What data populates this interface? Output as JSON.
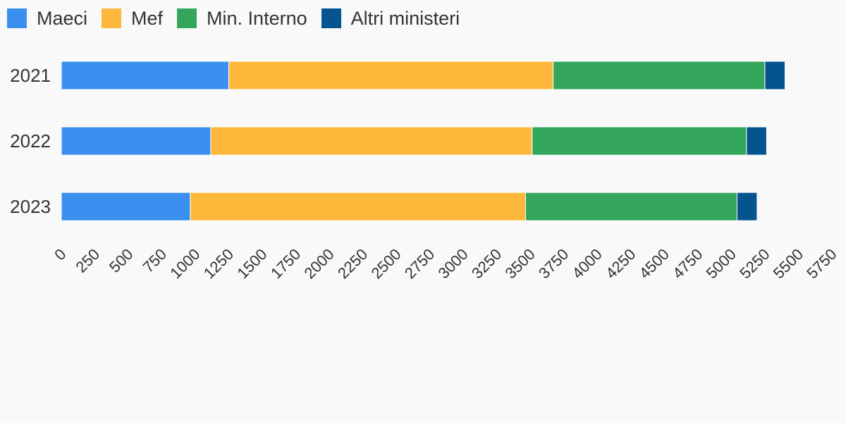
{
  "chart_data": {
    "type": "bar",
    "orientation": "horizontal",
    "stacked": true,
    "title": "",
    "xlabel": "",
    "ylabel": "",
    "categories": [
      "2021",
      "2022",
      "2023"
    ],
    "series": [
      {
        "name": "Maeci",
        "color": "#3a8fef",
        "values": [
          1250,
          1115,
          962
        ]
      },
      {
        "name": "Mef",
        "color": "#fdb83b",
        "values": [
          2420,
          2398,
          2502
        ]
      },
      {
        "name": "Min. Interno",
        "color": "#34a65b",
        "values": [
          1580,
          1600,
          1578
        ]
      },
      {
        "name": "Altri ministeri",
        "color": "#03548f",
        "values": [
          150,
          150,
          150
        ]
      }
    ],
    "xlim": [
      0,
      5750
    ],
    "x_ticks": [
      "0",
      "250",
      "500",
      "750",
      "1000",
      "1250",
      "1500",
      "1750",
      "2000",
      "2250",
      "2500",
      "2750",
      "3000",
      "3250",
      "3500",
      "3750",
      "4000",
      "4250",
      "4500",
      "4750",
      "5000",
      "5250",
      "5500",
      "5750"
    ],
    "grid": false,
    "legend_position": "top-left"
  }
}
